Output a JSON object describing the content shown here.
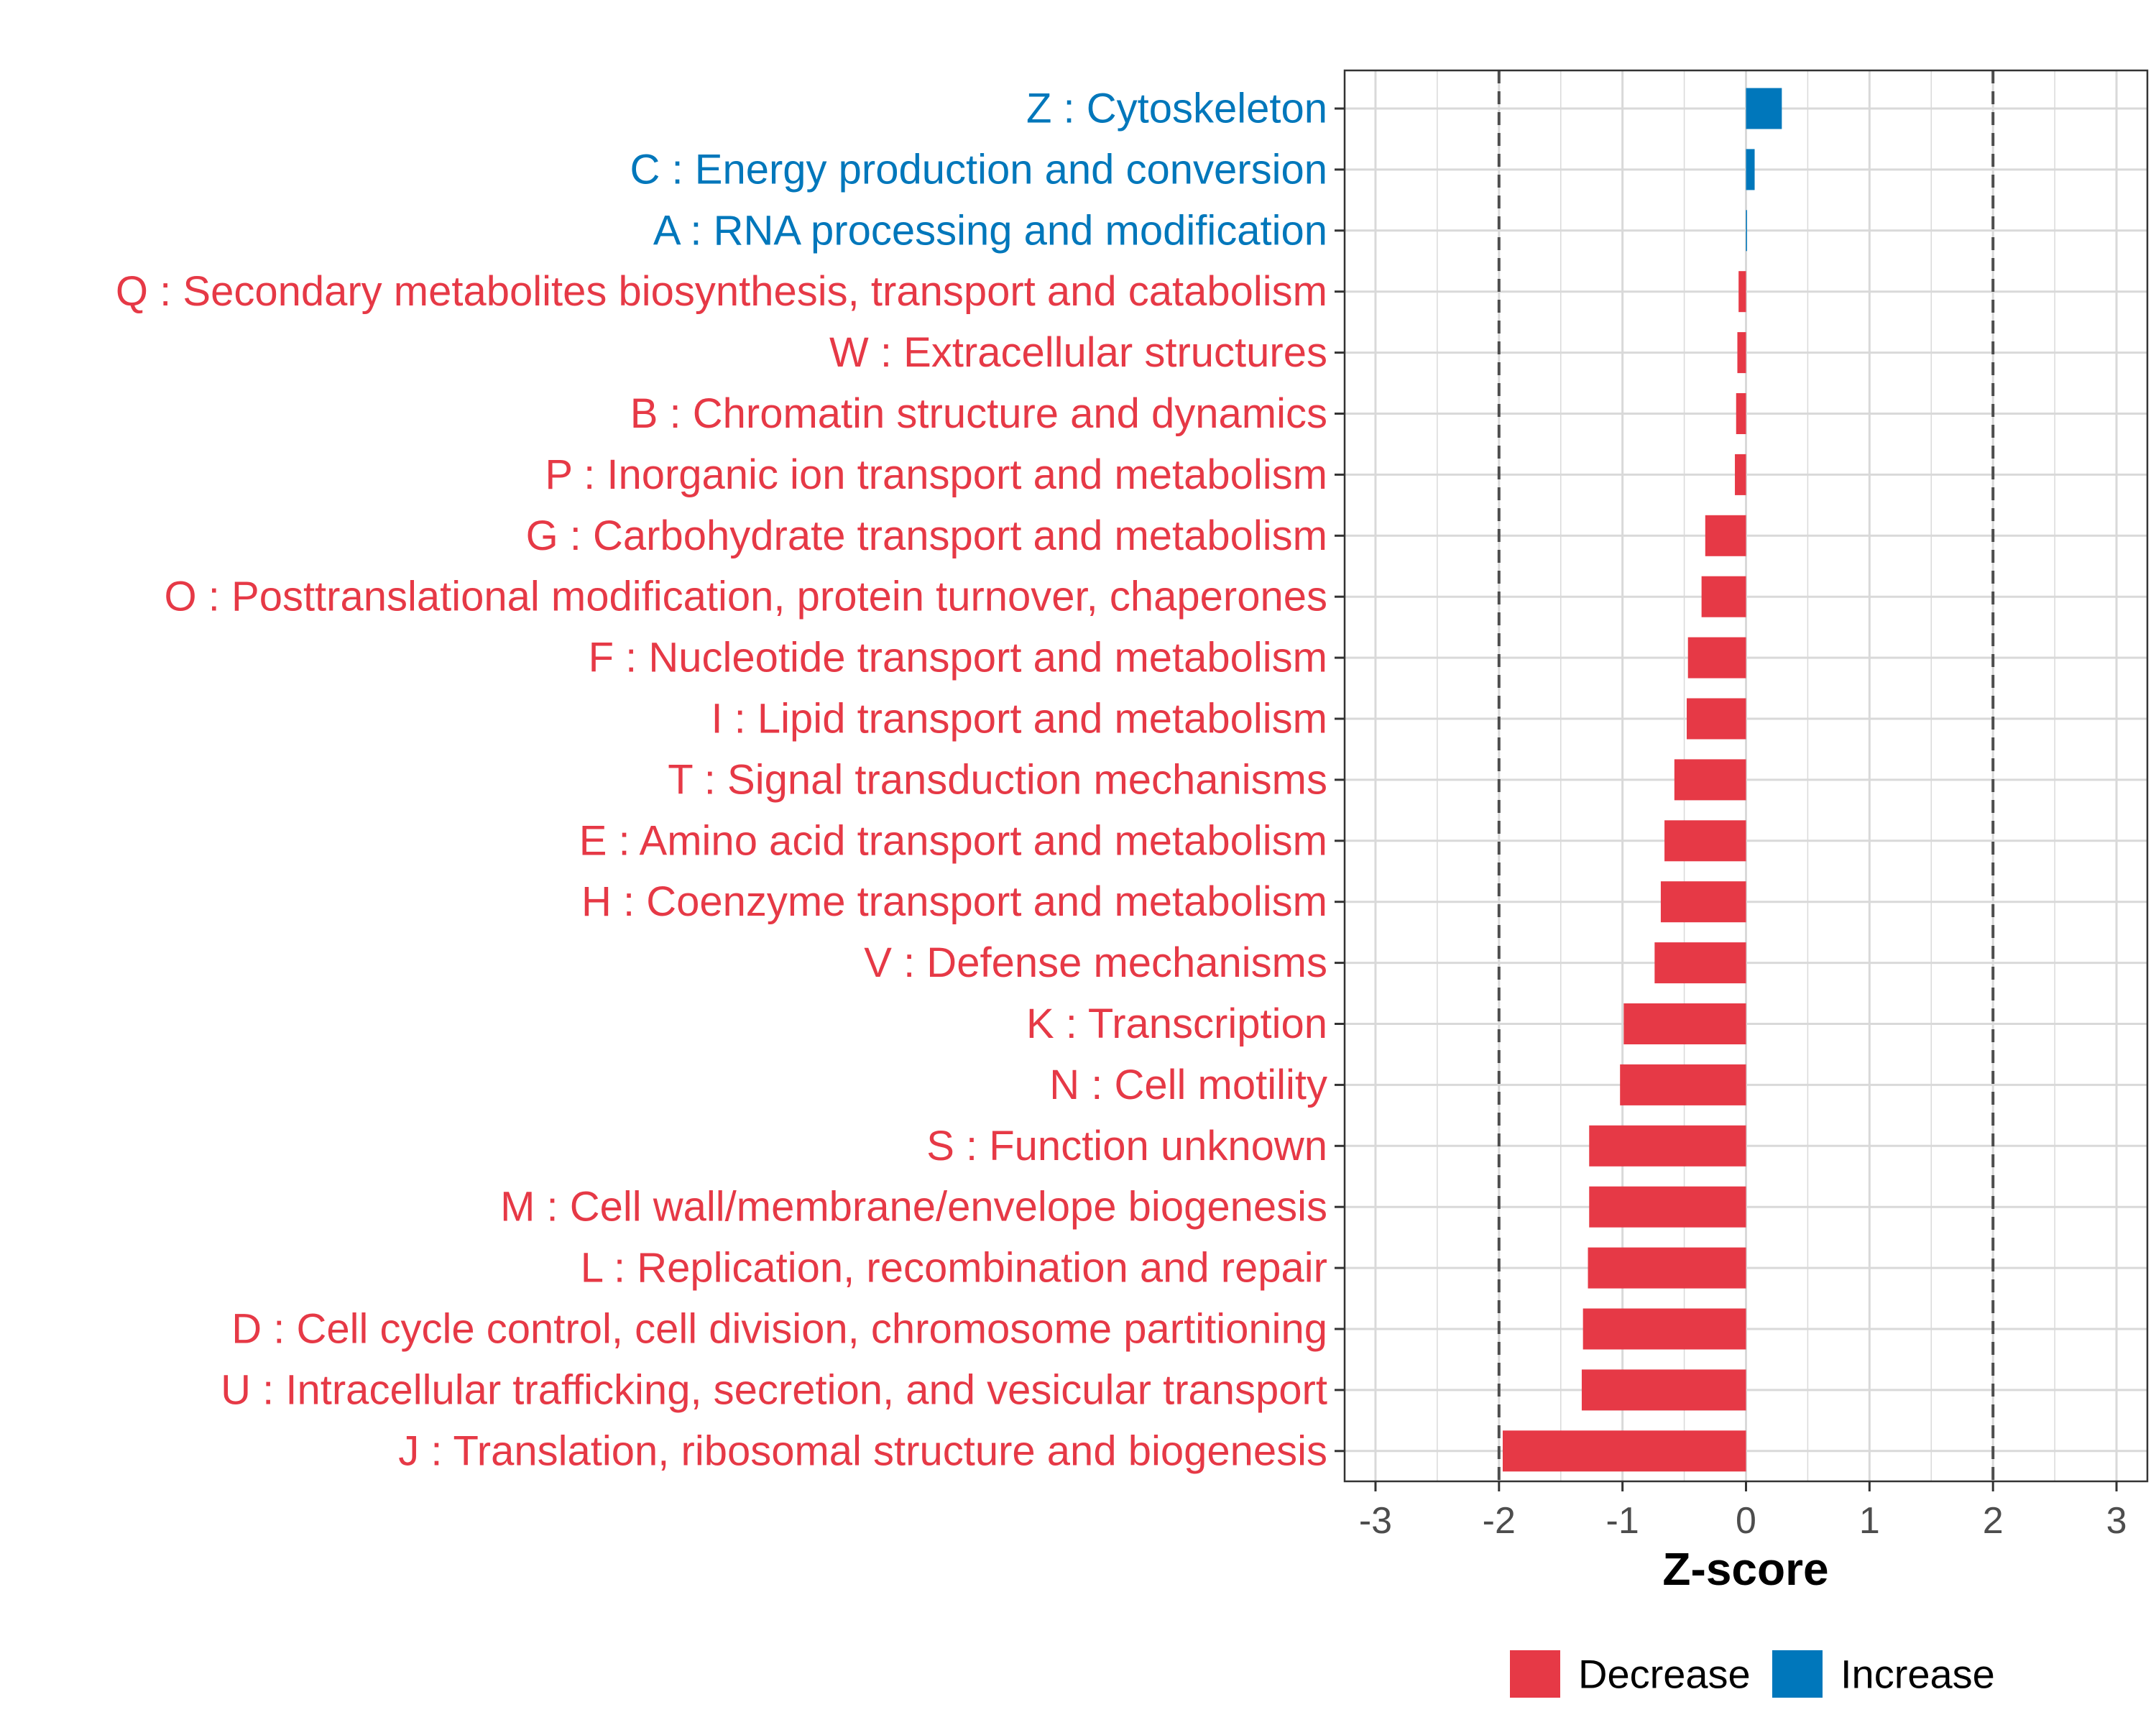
{
  "chart_data": {
    "type": "bar",
    "orientation": "horizontal",
    "xlabel": "Z-score",
    "ylabel": "",
    "xlim": [
      -3.25,
      3.25
    ],
    "xticks": [
      -3,
      -2,
      -1,
      0,
      1,
      2,
      3
    ],
    "reference_lines": [
      -2,
      2
    ],
    "grid": true,
    "legend_position": "bottom",
    "categories": [
      "Z : Cytoskeleton",
      "C : Energy production and conversion",
      "A : RNA processing and modification",
      "Q : Secondary metabolites biosynthesis, transport and catabolism",
      "W : Extracellular structures",
      "B : Chromatin structure and dynamics",
      "P : Inorganic ion transport and metabolism",
      "G : Carbohydrate transport and metabolism",
      "O : Posttranslational modification, protein turnover, chaperones",
      "F : Nucleotide transport and metabolism",
      "I : Lipid transport and metabolism",
      "T : Signal transduction mechanisms",
      "E : Amino acid transport and metabolism",
      "H : Coenzyme transport and metabolism",
      "V : Defense mechanisms",
      "K : Transcription",
      "N : Cell motility",
      "S : Function unknown",
      "M : Cell wall/membrane/envelope biogenesis",
      "L : Replication, recombination and repair",
      "D : Cell cycle control, cell division, chromosome partitioning",
      "U : Intracellular trafficking, secretion, and vesicular transport",
      "J : Translation, ribosomal structure and biogenesis"
    ],
    "values": [
      0.29,
      0.07,
      0.005,
      -0.06,
      -0.07,
      -0.08,
      -0.09,
      -0.33,
      -0.36,
      -0.47,
      -0.48,
      -0.58,
      -0.66,
      -0.69,
      -0.74,
      -0.99,
      -1.02,
      -1.27,
      -1.27,
      -1.28,
      -1.32,
      -1.33,
      -1.97
    ],
    "groups": [
      "Increase",
      "Increase",
      "Increase",
      "Decrease",
      "Decrease",
      "Decrease",
      "Decrease",
      "Decrease",
      "Decrease",
      "Decrease",
      "Decrease",
      "Decrease",
      "Decrease",
      "Decrease",
      "Decrease",
      "Decrease",
      "Decrease",
      "Decrease",
      "Decrease",
      "Decrease",
      "Decrease",
      "Decrease",
      "Decrease"
    ],
    "legend": [
      {
        "label": "Decrease",
        "color": "#E63946"
      },
      {
        "label": "Increase",
        "color": "#0077BB"
      }
    ]
  },
  "colors": {
    "decrease": "#E63946",
    "increase": "#0077BB",
    "grid": "#D9D9D9",
    "reference_line": "#4D4D4D"
  }
}
